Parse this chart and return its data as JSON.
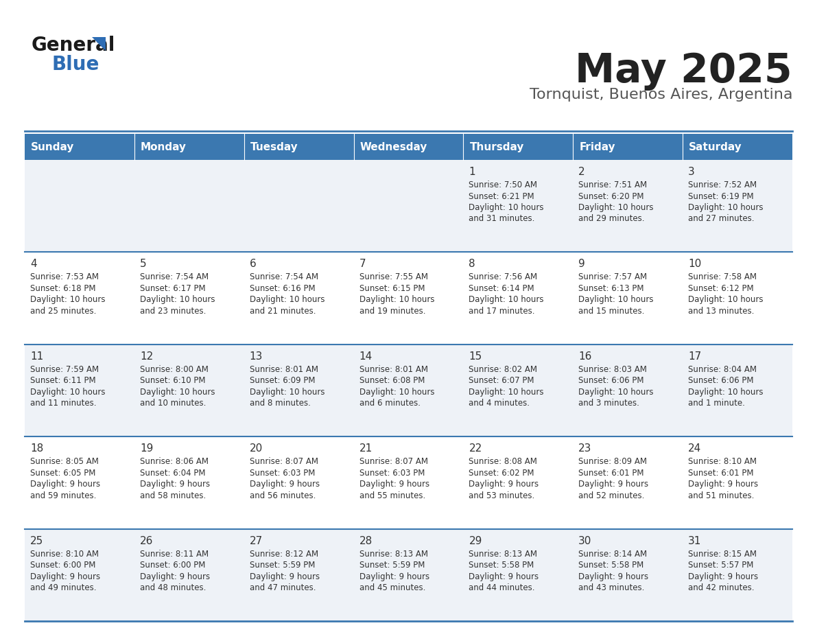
{
  "title": "May 2025",
  "subtitle": "Tornquist, Buenos Aires, Argentina",
  "days_of_week": [
    "Sunday",
    "Monday",
    "Tuesday",
    "Wednesday",
    "Thursday",
    "Friday",
    "Saturday"
  ],
  "header_bg": "#3b78b0",
  "header_text": "#ffffff",
  "cell_bg_light": "#eef2f7",
  "cell_bg_white": "#ffffff",
  "row_line_color": "#3b78b0",
  "text_color": "#333333",
  "title_color": "#222222",
  "subtitle_color": "#555555",
  "logo_general_color": "#1a1a1a",
  "logo_blue_color": "#2e6db4",
  "logo_triangle_color": "#2e6db4",
  "calendar_data": [
    [
      null,
      null,
      null,
      null,
      {
        "day": 1,
        "sunrise": "7:50 AM",
        "sunset": "6:21 PM",
        "daylight": "10 hours and 31 minutes."
      },
      {
        "day": 2,
        "sunrise": "7:51 AM",
        "sunset": "6:20 PM",
        "daylight": "10 hours and 29 minutes."
      },
      {
        "day": 3,
        "sunrise": "7:52 AM",
        "sunset": "6:19 PM",
        "daylight": "10 hours and 27 minutes."
      }
    ],
    [
      {
        "day": 4,
        "sunrise": "7:53 AM",
        "sunset": "6:18 PM",
        "daylight": "10 hours and 25 minutes."
      },
      {
        "day": 5,
        "sunrise": "7:54 AM",
        "sunset": "6:17 PM",
        "daylight": "10 hours and 23 minutes."
      },
      {
        "day": 6,
        "sunrise": "7:54 AM",
        "sunset": "6:16 PM",
        "daylight": "10 hours and 21 minutes."
      },
      {
        "day": 7,
        "sunrise": "7:55 AM",
        "sunset": "6:15 PM",
        "daylight": "10 hours and 19 minutes."
      },
      {
        "day": 8,
        "sunrise": "7:56 AM",
        "sunset": "6:14 PM",
        "daylight": "10 hours and 17 minutes."
      },
      {
        "day": 9,
        "sunrise": "7:57 AM",
        "sunset": "6:13 PM",
        "daylight": "10 hours and 15 minutes."
      },
      {
        "day": 10,
        "sunrise": "7:58 AM",
        "sunset": "6:12 PM",
        "daylight": "10 hours and 13 minutes."
      }
    ],
    [
      {
        "day": 11,
        "sunrise": "7:59 AM",
        "sunset": "6:11 PM",
        "daylight": "10 hours and 11 minutes."
      },
      {
        "day": 12,
        "sunrise": "8:00 AM",
        "sunset": "6:10 PM",
        "daylight": "10 hours and 10 minutes."
      },
      {
        "day": 13,
        "sunrise": "8:01 AM",
        "sunset": "6:09 PM",
        "daylight": "10 hours and 8 minutes."
      },
      {
        "day": 14,
        "sunrise": "8:01 AM",
        "sunset": "6:08 PM",
        "daylight": "10 hours and 6 minutes."
      },
      {
        "day": 15,
        "sunrise": "8:02 AM",
        "sunset": "6:07 PM",
        "daylight": "10 hours and 4 minutes."
      },
      {
        "day": 16,
        "sunrise": "8:03 AM",
        "sunset": "6:06 PM",
        "daylight": "10 hours and 3 minutes."
      },
      {
        "day": 17,
        "sunrise": "8:04 AM",
        "sunset": "6:06 PM",
        "daylight": "10 hours and 1 minute."
      }
    ],
    [
      {
        "day": 18,
        "sunrise": "8:05 AM",
        "sunset": "6:05 PM",
        "daylight": "9 hours and 59 minutes."
      },
      {
        "day": 19,
        "sunrise": "8:06 AM",
        "sunset": "6:04 PM",
        "daylight": "9 hours and 58 minutes."
      },
      {
        "day": 20,
        "sunrise": "8:07 AM",
        "sunset": "6:03 PM",
        "daylight": "9 hours and 56 minutes."
      },
      {
        "day": 21,
        "sunrise": "8:07 AM",
        "sunset": "6:03 PM",
        "daylight": "9 hours and 55 minutes."
      },
      {
        "day": 22,
        "sunrise": "8:08 AM",
        "sunset": "6:02 PM",
        "daylight": "9 hours and 53 minutes."
      },
      {
        "day": 23,
        "sunrise": "8:09 AM",
        "sunset": "6:01 PM",
        "daylight": "9 hours and 52 minutes."
      },
      {
        "day": 24,
        "sunrise": "8:10 AM",
        "sunset": "6:01 PM",
        "daylight": "9 hours and 51 minutes."
      }
    ],
    [
      {
        "day": 25,
        "sunrise": "8:10 AM",
        "sunset": "6:00 PM",
        "daylight": "9 hours and 49 minutes."
      },
      {
        "day": 26,
        "sunrise": "8:11 AM",
        "sunset": "6:00 PM",
        "daylight": "9 hours and 48 minutes."
      },
      {
        "day": 27,
        "sunrise": "8:12 AM",
        "sunset": "5:59 PM",
        "daylight": "9 hours and 47 minutes."
      },
      {
        "day": 28,
        "sunrise": "8:13 AM",
        "sunset": "5:59 PM",
        "daylight": "9 hours and 45 minutes."
      },
      {
        "day": 29,
        "sunrise": "8:13 AM",
        "sunset": "5:58 PM",
        "daylight": "9 hours and 44 minutes."
      },
      {
        "day": 30,
        "sunrise": "8:14 AM",
        "sunset": "5:58 PM",
        "daylight": "9 hours and 43 minutes."
      },
      {
        "day": 31,
        "sunrise": "8:15 AM",
        "sunset": "5:57 PM",
        "daylight": "9 hours and 42 minutes."
      }
    ]
  ]
}
